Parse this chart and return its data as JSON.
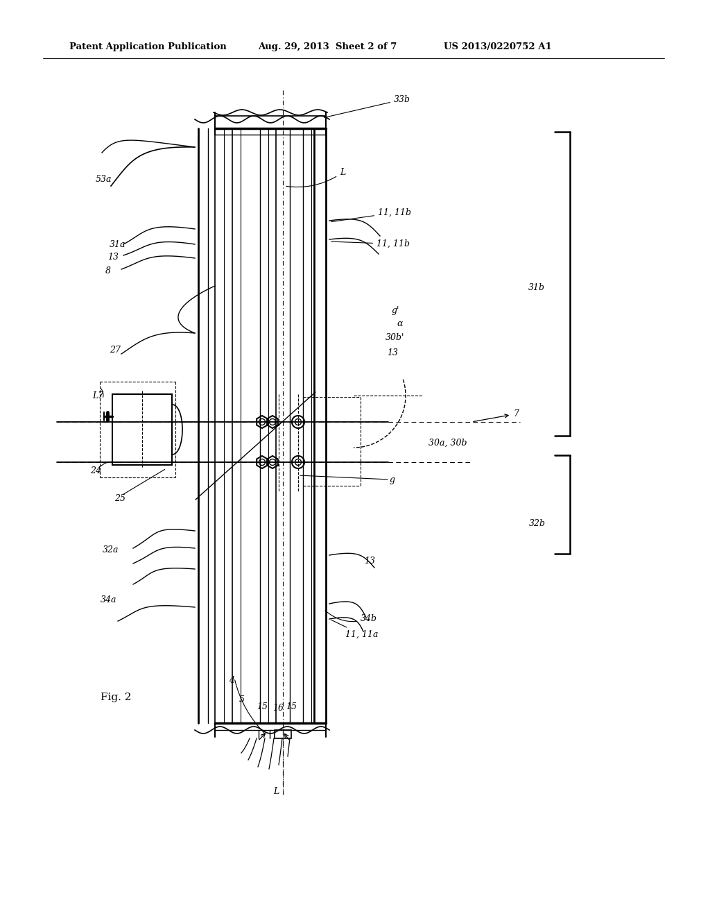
{
  "bg_color": "#ffffff",
  "header_left": "Patent Application Publication",
  "header_mid": "Aug. 29, 2013  Sheet 2 of 7",
  "header_right": "US 2013/0220752 A1",
  "fig_label": "Fig. 2",
  "header_fontsize": 9.5,
  "label_fontsize": 9.0
}
